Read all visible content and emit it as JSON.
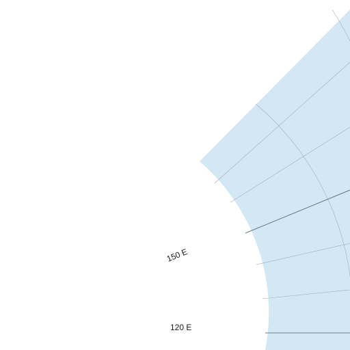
{
  "map": {
    "projection": "polar",
    "colors": {
      "ocean": "#d2e9f5",
      "graticule_minor": "#9db0b8",
      "graticule_major": "#6f7f86",
      "background": "#ffffff",
      "label": "#1a1a1a"
    },
    "longitude_labels": [
      {
        "text": "150 E",
        "lon_deg": 150
      },
      {
        "text": "120 E",
        "lon_deg": 120
      }
    ]
  }
}
